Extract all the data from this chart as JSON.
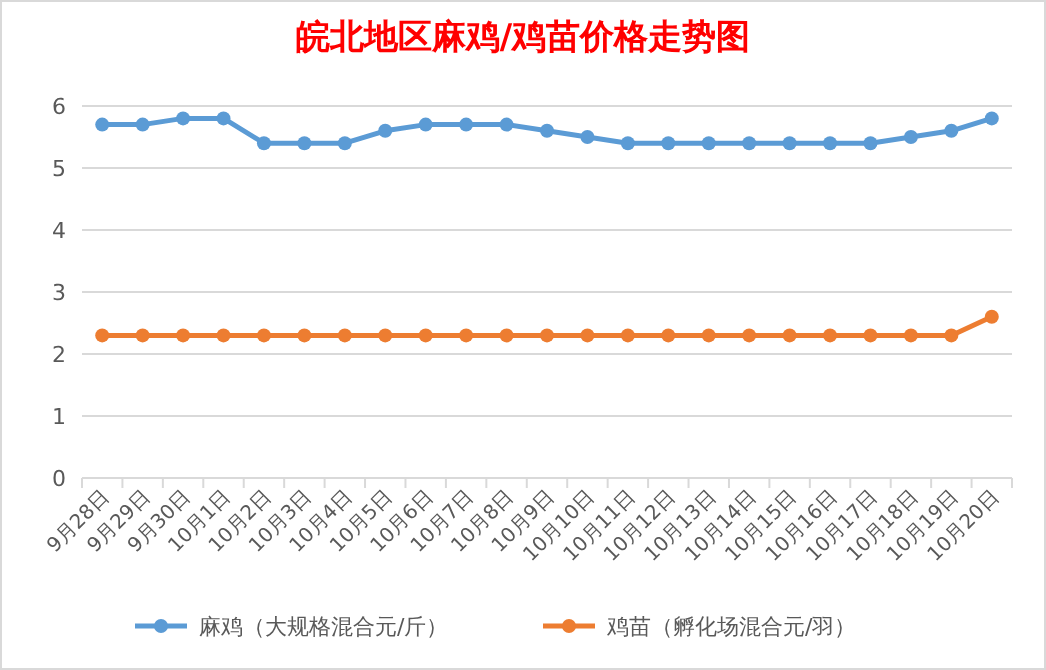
{
  "chart_data": {
    "type": "line",
    "title": "皖北地区麻鸡/鸡苗价格走势图",
    "categories": [
      "9月28日",
      "9月29日",
      "9月30日",
      "10月1日",
      "10月2日",
      "10月3日",
      "10月4日",
      "10月5日",
      "10月6日",
      "10月7日",
      "10月8日",
      "10月9日",
      "10月10日",
      "10月11日",
      "10月12日",
      "10月13日",
      "10月14日",
      "10月15日",
      "10月16日",
      "10月17日",
      "10月18日",
      "10月19日",
      "10月20日"
    ],
    "series": [
      {
        "name": "麻鸡（大规格混合元/斤）",
        "color": "#5b9bd5",
        "values": [
          5.7,
          5.7,
          5.8,
          5.8,
          5.4,
          5.4,
          5.4,
          5.6,
          5.7,
          5.7,
          5.7,
          5.6,
          5.5,
          5.4,
          5.4,
          5.4,
          5.4,
          5.4,
          5.4,
          5.4,
          5.5,
          5.6,
          5.8
        ]
      },
      {
        "name": "鸡苗（孵化场混合元/羽）",
        "color": "#ed7d31",
        "values": [
          2.3,
          2.3,
          2.3,
          2.3,
          2.3,
          2.3,
          2.3,
          2.3,
          2.3,
          2.3,
          2.3,
          2.3,
          2.3,
          2.3,
          2.3,
          2.3,
          2.3,
          2.3,
          2.3,
          2.3,
          2.3,
          2.3,
          2.6
        ]
      }
    ],
    "ylim": [
      0,
      6
    ],
    "yticks": [
      0,
      1,
      2,
      3,
      4,
      5,
      6
    ],
    "grid": "y",
    "legend": "bottom",
    "marker": "circle",
    "line_style": "solid"
  }
}
